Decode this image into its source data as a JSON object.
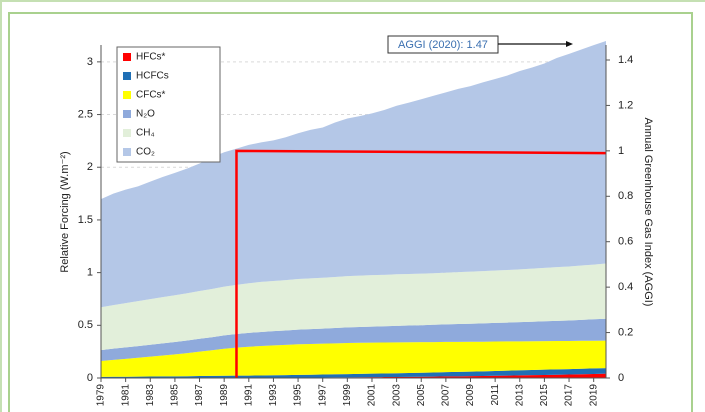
{
  "chart_data": {
    "type": "stacked-area",
    "y_label": "Relative Forcing (W.m⁻²)",
    "y2_label": "Annual Greenhouse Gas Index (AGGI)",
    "annotations": [
      {
        "text": "AGGI (2020): 1.47"
      }
    ],
    "x": [
      1979,
      1980,
      1981,
      1982,
      1983,
      1984,
      1985,
      1986,
      1987,
      1988,
      1989,
      1990,
      1991,
      1992,
      1993,
      1994,
      1995,
      1996,
      1997,
      1998,
      1999,
      2000,
      2001,
      2002,
      2003,
      2004,
      2005,
      2006,
      2007,
      2008,
      2009,
      2010,
      2011,
      2012,
      2013,
      2014,
      2015,
      2016,
      2017,
      2018,
      2019,
      2020
    ],
    "xlim": [
      1979,
      2020
    ],
    "xticks": [
      1979,
      1981,
      1983,
      1985,
      1987,
      1989,
      1991,
      1993,
      1995,
      1997,
      1999,
      2001,
      2003,
      2005,
      2007,
      2009,
      2011,
      2013,
      2015,
      2017,
      2019
    ],
    "ylim": [
      0,
      3.16
    ],
    "yticks": [
      0,
      0.5,
      1,
      1.5,
      2,
      2.5,
      3
    ],
    "y2lim": [
      0,
      1.466
    ],
    "y2ticks": [
      0,
      0.2,
      0.4,
      0.6,
      0.8,
      1,
      1.2,
      1.4
    ],
    "grid": true,
    "legend": "upper left",
    "series": [
      {
        "name": "HFCs*",
        "color": "#ff0000",
        "values": [
          0.001,
          0.001,
          0.001,
          0.001,
          0.001,
          0.001,
          0.001,
          0.001,
          0.002,
          0.002,
          0.002,
          0.002,
          0.002,
          0.002,
          0.003,
          0.003,
          0.004,
          0.004,
          0.005,
          0.006,
          0.006,
          0.007,
          0.008,
          0.009,
          0.01,
          0.011,
          0.012,
          0.013,
          0.015,
          0.016,
          0.018,
          0.019,
          0.021,
          0.023,
          0.025,
          0.027,
          0.029,
          0.031,
          0.033,
          0.036,
          0.038,
          0.041
        ]
      },
      {
        "name": "HCFCs",
        "color": "#1f6fb5",
        "values": [
          0.01,
          0.011,
          0.011,
          0.012,
          0.013,
          0.014,
          0.015,
          0.016,
          0.017,
          0.018,
          0.019,
          0.02,
          0.021,
          0.022,
          0.023,
          0.024,
          0.026,
          0.027,
          0.028,
          0.029,
          0.031,
          0.032,
          0.033,
          0.034,
          0.035,
          0.036,
          0.038,
          0.039,
          0.041,
          0.042,
          0.043,
          0.044,
          0.046,
          0.047,
          0.048,
          0.049,
          0.05,
          0.051,
          0.051,
          0.052,
          0.053,
          0.053
        ]
      },
      {
        "name": "CFCs*",
        "color": "#ffff00",
        "values": [
          0.15,
          0.16,
          0.17,
          0.179,
          0.189,
          0.198,
          0.208,
          0.219,
          0.231,
          0.243,
          0.256,
          0.266,
          0.274,
          0.28,
          0.284,
          0.287,
          0.29,
          0.292,
          0.293,
          0.294,
          0.295,
          0.295,
          0.295,
          0.294,
          0.293,
          0.292,
          0.29,
          0.289,
          0.287,
          0.285,
          0.283,
          0.281,
          0.279,
          0.277,
          0.275,
          0.273,
          0.271,
          0.269,
          0.267,
          0.265,
          0.263,
          0.261
        ]
      },
      {
        "name": "N₂O",
        "color": "#8faadc",
        "values": [
          0.104,
          0.107,
          0.109,
          0.111,
          0.113,
          0.116,
          0.118,
          0.12,
          0.122,
          0.124,
          0.127,
          0.129,
          0.131,
          0.133,
          0.135,
          0.137,
          0.139,
          0.141,
          0.143,
          0.145,
          0.148,
          0.15,
          0.152,
          0.154,
          0.157,
          0.159,
          0.161,
          0.164,
          0.166,
          0.169,
          0.171,
          0.174,
          0.177,
          0.179,
          0.182,
          0.185,
          0.188,
          0.191,
          0.195,
          0.199,
          0.203,
          0.207
        ]
      },
      {
        "name": "CH₄",
        "color": "#e2efda",
        "values": [
          0.406,
          0.413,
          0.42,
          0.426,
          0.432,
          0.438,
          0.443,
          0.448,
          0.453,
          0.458,
          0.463,
          0.467,
          0.471,
          0.475,
          0.476,
          0.478,
          0.48,
          0.481,
          0.482,
          0.485,
          0.487,
          0.488,
          0.488,
          0.488,
          0.489,
          0.489,
          0.489,
          0.489,
          0.491,
          0.493,
          0.495,
          0.496,
          0.497,
          0.499,
          0.501,
          0.504,
          0.507,
          0.51,
          0.512,
          0.515,
          0.519,
          0.524
        ]
      },
      {
        "name": "CO₂",
        "color": "#b4c7e7",
        "values": [
          1.027,
          1.058,
          1.077,
          1.089,
          1.115,
          1.14,
          1.162,
          1.184,
          1.211,
          1.25,
          1.275,
          1.293,
          1.313,
          1.324,
          1.334,
          1.356,
          1.383,
          1.41,
          1.426,
          1.465,
          1.495,
          1.513,
          1.535,
          1.564,
          1.6,
          1.626,
          1.655,
          1.685,
          1.71,
          1.739,
          1.76,
          1.791,
          1.817,
          1.846,
          1.882,
          1.908,
          1.939,
          1.985,
          2.018,
          2.05,
          2.083,
          2.112
        ]
      },
      {
        "type": "line",
        "axis": "y2",
        "color": "#ff0000",
        "x": [
          1990,
          1990,
          2020
        ],
        "values": [
          0,
          1,
          0.99
        ]
      }
    ]
  }
}
